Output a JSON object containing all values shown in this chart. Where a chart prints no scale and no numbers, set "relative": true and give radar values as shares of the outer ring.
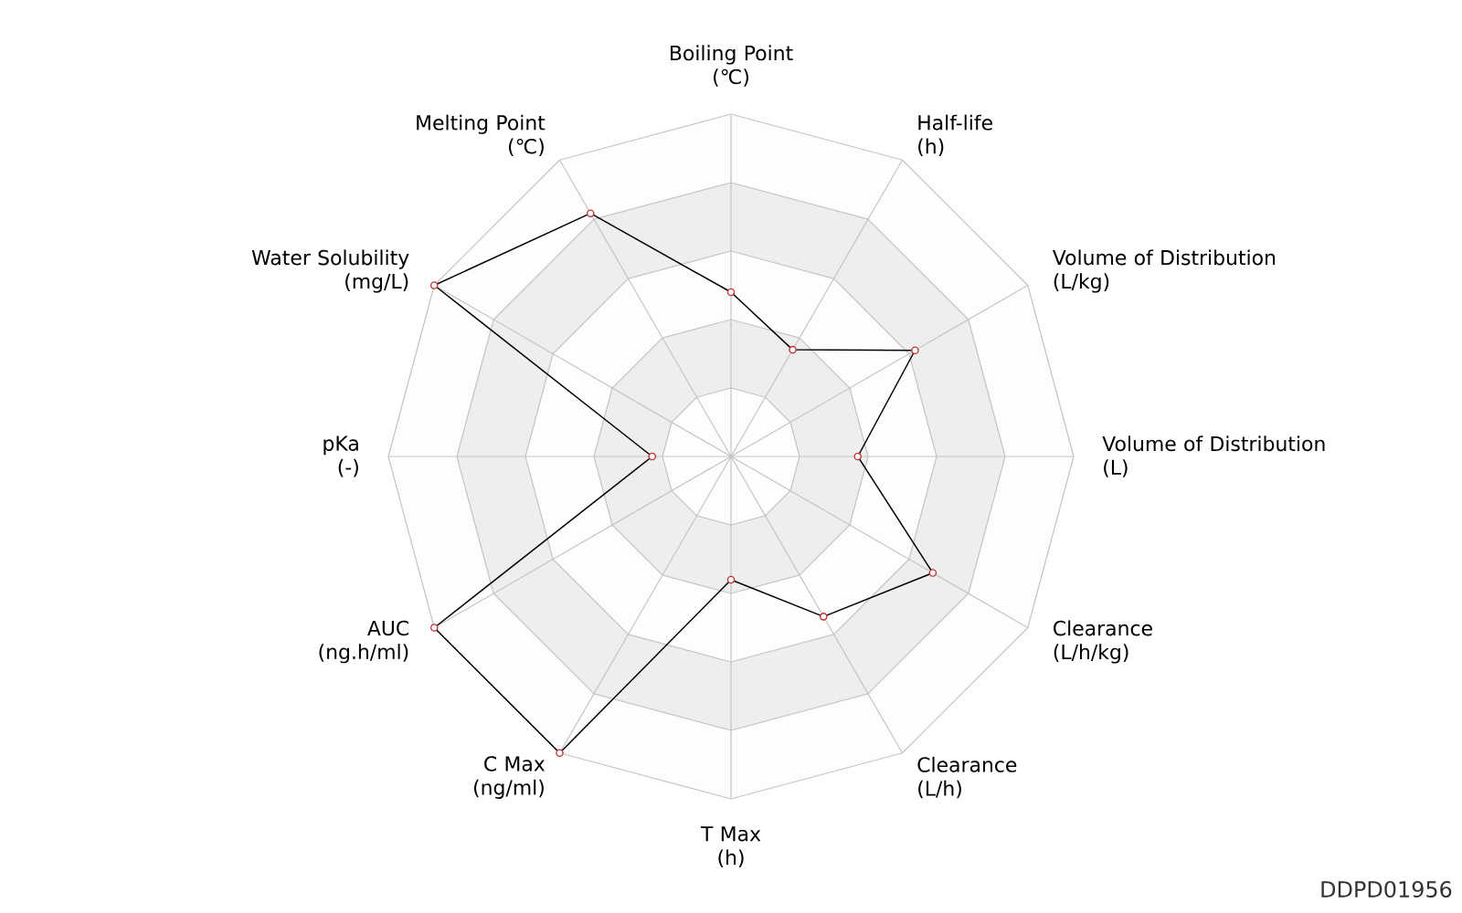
{
  "chart_data": {
    "type": "radar",
    "categories": [
      "Boiling Point\n(℃)",
      "Half-life\n(h)",
      "Volume of Distribution\n(L/kg)",
      "Volume of Distribution\n(L)",
      "Clearance\n(L/h/kg)",
      "Clearance\n(L/h)",
      "T Max\n(h)",
      "C Max\n(ng/ml)",
      "AUC\n(ng.h/ml)",
      "pKa\n(-)",
      "Water Solubility\n(mg/L)",
      "Melting Point\n(℃)"
    ],
    "relative": true,
    "series": [
      {
        "color": "#000000",
        "values": [
          0.48,
          0.36,
          0.62,
          0.37,
          0.68,
          0.54,
          0.36,
          1,
          1,
          0.23,
          1,
          0.82
        ]
      }
    ],
    "marker": "circle",
    "line_style": "solid",
    "annotations": [
      "DDPD01956"
    ]
  }
}
